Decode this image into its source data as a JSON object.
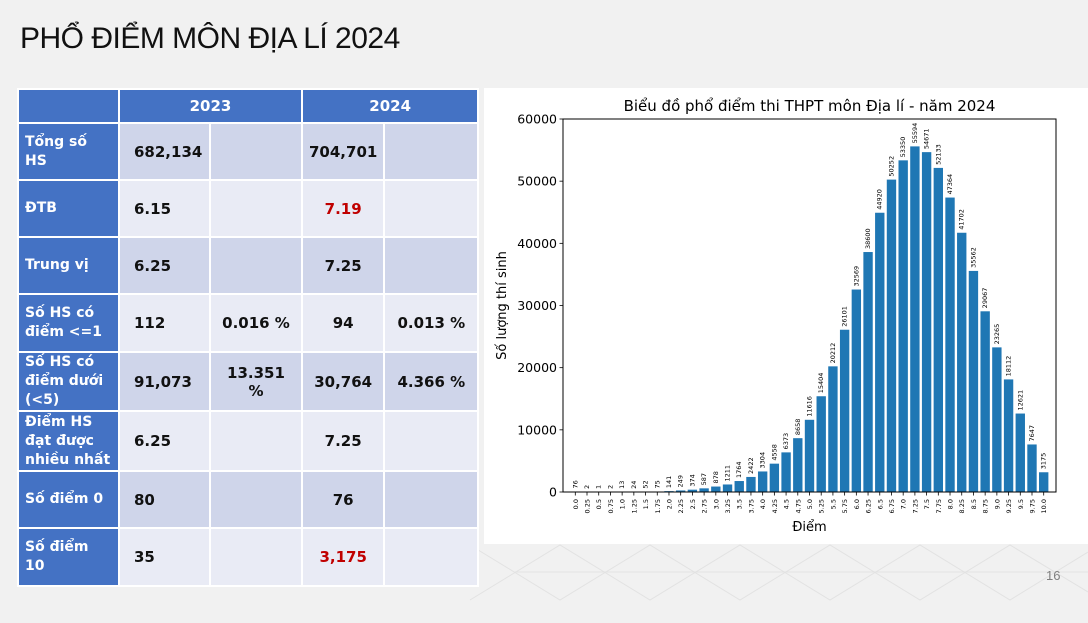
{
  "slide": {
    "title": "PHỔ ĐIỂM MÔN ĐỊA LÍ 2024",
    "page_number": "16"
  },
  "table": {
    "headers": [
      "",
      "2023",
      "2024"
    ],
    "rows": [
      {
        "label": "Tổng số HS",
        "v2023": "682,134",
        "p2023": "",
        "v2024": "704,701",
        "p2024": "",
        "red2024": false
      },
      {
        "label": "ĐTB",
        "v2023": "6.15",
        "p2023": "",
        "v2024": "7.19",
        "p2024": "",
        "red2024": true
      },
      {
        "label": "Trung vị",
        "v2023": "6.25",
        "p2023": "",
        "v2024": "7.25",
        "p2024": "",
        "red2024": false
      },
      {
        "label": "Số HS có điểm <=1",
        "v2023": "112",
        "p2023": "0.016 %",
        "v2024": "94",
        "p2024": "0.013 %",
        "red2024": false
      },
      {
        "label": "Số HS có điểm dưới (<5)",
        "v2023": "91,073",
        "p2023": "13.351 %",
        "v2024": "30,764",
        "p2024": "4.366 %",
        "red2024": false
      },
      {
        "label": "Điểm HS đạt được nhiều nhất",
        "v2023": "6.25",
        "p2023": "",
        "v2024": "7.25",
        "p2024": "",
        "red2024": false
      },
      {
        "label": "Số điểm 0",
        "v2023": "80",
        "p2023": "",
        "v2024": "76",
        "p2024": "",
        "red2024": false
      },
      {
        "label": "Số điểm 10",
        "v2023": "35",
        "p2023": "",
        "v2024": "3,175",
        "p2024": "",
        "red2024": true
      }
    ]
  },
  "colors": {
    "header_blue": "#4472c4",
    "bar_blue": "#1f77b4",
    "highlight_red": "#c00000"
  },
  "chart_data": {
    "type": "bar",
    "title": "Biểu đồ phổ điểm thi THPT môn Địa lí - năm 2024",
    "xlabel": "Điểm",
    "ylabel": "Số lượng thí sinh",
    "ylim": [
      0,
      60000
    ],
    "yticks": [
      0,
      10000,
      20000,
      30000,
      40000,
      50000,
      60000
    ],
    "grid": false,
    "categories": [
      "0.0",
      "0.25",
      "0.5",
      "0.75",
      "1.0",
      "1.25",
      "1.5",
      "1.75",
      "2.0",
      "2.25",
      "2.5",
      "2.75",
      "3.0",
      "3.25",
      "3.5",
      "3.75",
      "4.0",
      "4.25",
      "4.5",
      "4.75",
      "5.0",
      "5.25",
      "5.5",
      "5.75",
      "6.0",
      "6.25",
      "6.5",
      "6.75",
      "7.0",
      "7.25",
      "7.5",
      "7.75",
      "8.0",
      "8.25",
      "8.5",
      "8.75",
      "9.0",
      "9.25",
      "9.5",
      "9.75",
      "10.0"
    ],
    "values": [
      76,
      2,
      1,
      2,
      13,
      24,
      52,
      75,
      141,
      249,
      374,
      587,
      878,
      1211,
      1764,
      2422,
      3304,
      4558,
      6373,
      8658,
      11616,
      15404,
      20212,
      26101,
      32569,
      38600,
      44920,
      50252,
      53350,
      55594,
      54671,
      52133,
      47364,
      41702,
      35562,
      29067,
      23265,
      18112,
      12621,
      7647,
      3175
    ]
  }
}
